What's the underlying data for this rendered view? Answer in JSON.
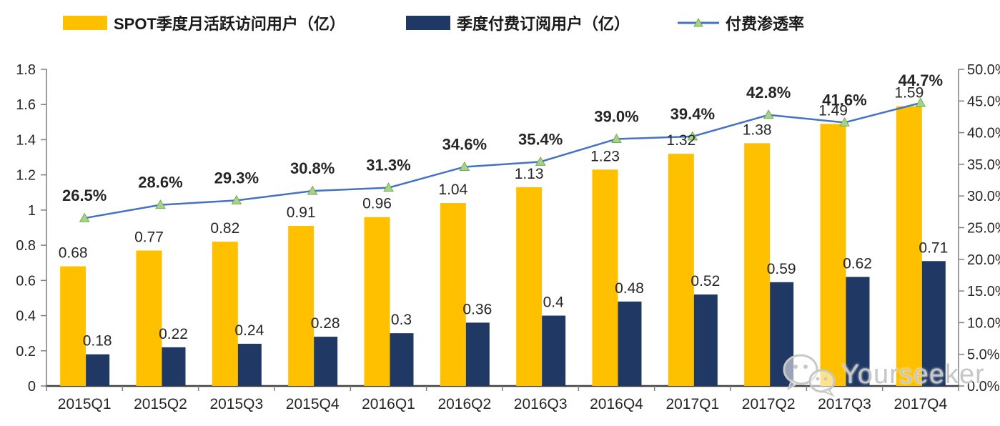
{
  "legend": {
    "items": [
      {
        "label": "SPOT季度月活跃访问用户（亿）",
        "type": "bar",
        "color": "#FFC000"
      },
      {
        "label": "季度付费订阅用户（亿）",
        "type": "bar",
        "color": "#1F3864"
      },
      {
        "label": "付费渗透率",
        "type": "line",
        "color": "#4472C4",
        "marker_fill": "#A9D18E",
        "marker_stroke": "#70AD47"
      }
    ]
  },
  "chart_data": {
    "type": "bar+line combo, dual axis",
    "categories": [
      "2015Q1",
      "2015Q2",
      "2015Q3",
      "2015Q4",
      "2016Q1",
      "2016Q2",
      "2016Q3",
      "2016Q4",
      "2017Q1",
      "2017Q2",
      "2017Q3",
      "2017Q4"
    ],
    "series": [
      {
        "name": "SPOT季度月活跃访问用户（亿）",
        "type": "bar",
        "axis": "left",
        "color": "#FFC000",
        "values": [
          0.68,
          0.77,
          0.82,
          0.91,
          0.96,
          1.04,
          1.13,
          1.23,
          1.32,
          1.38,
          1.49,
          1.59
        ],
        "labels": [
          "0.68",
          "0.77",
          "0.82",
          "0.91",
          "0.96",
          "1.04",
          "1.13",
          "1.23",
          "1.32",
          "1.38",
          "1.49",
          "1.59"
        ]
      },
      {
        "name": "季度付费订阅用户（亿）",
        "type": "bar",
        "axis": "left",
        "color": "#1F3864",
        "values": [
          0.18,
          0.22,
          0.24,
          0.28,
          0.3,
          0.36,
          0.4,
          0.48,
          0.52,
          0.59,
          0.62,
          0.71
        ],
        "labels": [
          "0.18",
          "0.22",
          "0.24",
          "0.28",
          "0.3",
          "0.36",
          "0.4",
          "0.48",
          "0.52",
          "0.59",
          "0.62",
          "0.71"
        ]
      },
      {
        "name": "付费渗透率",
        "type": "line",
        "axis": "right",
        "color": "#4472C4",
        "marker": "triangle",
        "marker_fill": "#A9D18E",
        "marker_stroke": "#70AD47",
        "values": [
          26.5,
          28.6,
          29.3,
          30.8,
          31.3,
          34.6,
          35.4,
          39.0,
          39.4,
          42.8,
          41.6,
          44.7
        ],
        "labels": [
          "26.5%",
          "28.6%",
          "29.3%",
          "30.8%",
          "31.3%",
          "34.6%",
          "35.4%",
          "39.0%",
          "39.4%",
          "42.8%",
          "41.6%",
          "44.7%"
        ]
      }
    ],
    "left_axis": {
      "min": 0,
      "max": 1.8,
      "step": 0.2,
      "ticks": [
        "0",
        "0.2",
        "0.4",
        "0.6",
        "0.8",
        "1",
        "1.2",
        "1.4",
        "1.6",
        "1.8"
      ]
    },
    "right_axis": {
      "min": 0,
      "max": 50,
      "step": 5,
      "ticks": [
        "0.0%",
        "5.0%",
        "10.0%",
        "15.0%",
        "20.0%",
        "25.0%",
        "30.0%",
        "35.0%",
        "40.0%",
        "45.0%",
        "50.0%"
      ]
    },
    "grid": "off",
    "legend_position": "top",
    "title": ""
  },
  "watermark": {
    "text": "Yourseeker",
    "icon": "wechat-chat-bubbles-icon"
  }
}
